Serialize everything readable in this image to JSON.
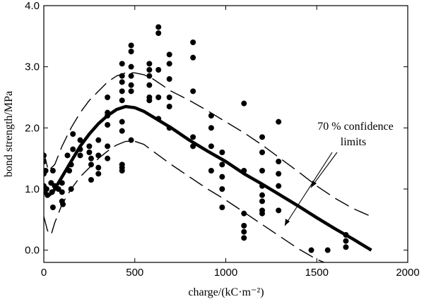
{
  "chart_data": {
    "type": "scatter",
    "title": "",
    "xlabel": "charge/(kC·m⁻²)",
    "ylabel": "bond strength/MPa",
    "xlim": [
      0,
      2000
    ],
    "ylim": [
      -0.2,
      4.0
    ],
    "x_ticks": [
      0,
      500,
      1000,
      1500,
      2000
    ],
    "y_ticks": [
      0.0,
      1.0,
      2.0,
      3.0,
      4.0
    ],
    "x_tick_labels": [
      "0",
      "500",
      "1000",
      "1500",
      "2000"
    ],
    "y_tick_labels": [
      "0.0",
      "1.0",
      "2.0",
      "3.0",
      "4.0"
    ],
    "annotation": {
      "line1": "70 % confidence",
      "line2": "limits"
    },
    "series": [
      {
        "name": "measured bond strength",
        "kind": "points",
        "points": [
          [
            0,
            1.55
          ],
          [
            0,
            1.45
          ],
          [
            0,
            1.25
          ],
          [
            0,
            1.05
          ],
          [
            0,
            0.95
          ],
          [
            10,
            1.3
          ],
          [
            15,
            1.0
          ],
          [
            20,
            0.9
          ],
          [
            40,
            1.1
          ],
          [
            45,
            0.95
          ],
          [
            50,
            1.3
          ],
          [
            50,
            0.7
          ],
          [
            60,
            1.05
          ],
          [
            80,
            1.0
          ],
          [
            100,
            1.1
          ],
          [
            100,
            0.95
          ],
          [
            100,
            0.8
          ],
          [
            105,
            0.75
          ],
          [
            130,
            1.55
          ],
          [
            140,
            1.3
          ],
          [
            150,
            1.4
          ],
          [
            150,
            1.0
          ],
          [
            160,
            1.9
          ],
          [
            160,
            1.65
          ],
          [
            200,
            1.55
          ],
          [
            200,
            1.65
          ],
          [
            200,
            1.8
          ],
          [
            250,
            1.6
          ],
          [
            250,
            1.7
          ],
          [
            260,
            1.5
          ],
          [
            260,
            1.4
          ],
          [
            260,
            1.15
          ],
          [
            300,
            1.8
          ],
          [
            300,
            1.55
          ],
          [
            300,
            1.35
          ],
          [
            300,
            1.25
          ],
          [
            350,
            2.5
          ],
          [
            350,
            2.25
          ],
          [
            350,
            2.2
          ],
          [
            350,
            2.05
          ],
          [
            350,
            1.7
          ],
          [
            350,
            1.5
          ],
          [
            430,
            3.05
          ],
          [
            430,
            2.85
          ],
          [
            430,
            2.75
          ],
          [
            430,
            2.6
          ],
          [
            430,
            2.45
          ],
          [
            430,
            2.1
          ],
          [
            430,
            1.95
          ],
          [
            430,
            1.4
          ],
          [
            430,
            1.35
          ],
          [
            430,
            1.3
          ],
          [
            480,
            3.35
          ],
          [
            480,
            3.25
          ],
          [
            480,
            3.0
          ],
          [
            480,
            2.85
          ],
          [
            480,
            2.7
          ],
          [
            480,
            2.6
          ],
          [
            480,
            1.8
          ],
          [
            580,
            3.05
          ],
          [
            580,
            2.95
          ],
          [
            580,
            2.85
          ],
          [
            580,
            2.7
          ],
          [
            580,
            2.5
          ],
          [
            580,
            2.45
          ],
          [
            630,
            3.65
          ],
          [
            630,
            3.55
          ],
          [
            630,
            2.95
          ],
          [
            630,
            2.5
          ],
          [
            630,
            2.15
          ],
          [
            690,
            3.2
          ],
          [
            690,
            3.05
          ],
          [
            690,
            2.8
          ],
          [
            690,
            2.5
          ],
          [
            690,
            2.35
          ],
          [
            690,
            2.0
          ],
          [
            820,
            3.4
          ],
          [
            820,
            3.15
          ],
          [
            820,
            2.6
          ],
          [
            820,
            1.85
          ],
          [
            820,
            1.7
          ],
          [
            920,
            2.2
          ],
          [
            920,
            2.0
          ],
          [
            920,
            1.7
          ],
          [
            920,
            1.3
          ],
          [
            980,
            1.6
          ],
          [
            980,
            1.4
          ],
          [
            980,
            1.2
          ],
          [
            980,
            1.0
          ],
          [
            980,
            0.7
          ],
          [
            1100,
            2.4
          ],
          [
            1100,
            1.3
          ],
          [
            1100,
            0.6
          ],
          [
            1100,
            0.4
          ],
          [
            1100,
            0.3
          ],
          [
            1100,
            0.2
          ],
          [
            1200,
            1.85
          ],
          [
            1200,
            1.6
          ],
          [
            1200,
            1.3
          ],
          [
            1200,
            1.05
          ],
          [
            1200,
            0.9
          ],
          [
            1200,
            0.8
          ],
          [
            1200,
            0.65
          ],
          [
            1200,
            0.6
          ],
          [
            1290,
            2.1
          ],
          [
            1290,
            1.45
          ],
          [
            1290,
            1.25
          ],
          [
            1290,
            1.05
          ],
          [
            1290,
            0.65
          ],
          [
            1470,
            0.0
          ],
          [
            1560,
            0.0
          ],
          [
            1660,
            0.25
          ],
          [
            1660,
            0.15
          ],
          [
            1660,
            0.05
          ]
        ]
      },
      {
        "name": "mean fit",
        "kind": "thick-line",
        "points": [
          [
            0,
            1.05
          ],
          [
            20,
            0.88
          ],
          [
            50,
            0.95
          ],
          [
            100,
            1.2
          ],
          [
            150,
            1.45
          ],
          [
            200,
            1.7
          ],
          [
            250,
            1.9
          ],
          [
            300,
            2.07
          ],
          [
            350,
            2.2
          ],
          [
            400,
            2.3
          ],
          [
            450,
            2.35
          ],
          [
            500,
            2.33
          ],
          [
            550,
            2.27
          ],
          [
            600,
            2.18
          ],
          [
            700,
            2.0
          ],
          [
            800,
            1.8
          ],
          [
            900,
            1.62
          ],
          [
            1000,
            1.45
          ],
          [
            1100,
            1.25
          ],
          [
            1200,
            1.08
          ],
          [
            1300,
            0.9
          ],
          [
            1400,
            0.72
          ],
          [
            1500,
            0.53
          ],
          [
            1600,
            0.35
          ],
          [
            1700,
            0.18
          ],
          [
            1800,
            0.0
          ]
        ]
      },
      {
        "name": "upper 70% confidence limit",
        "kind": "dashed-line",
        "points": [
          [
            0,
            1.6
          ],
          [
            25,
            1.3
          ],
          [
            60,
            1.4
          ],
          [
            100,
            1.7
          ],
          [
            150,
            2.0
          ],
          [
            200,
            2.25
          ],
          [
            250,
            2.45
          ],
          [
            300,
            2.6
          ],
          [
            350,
            2.75
          ],
          [
            400,
            2.85
          ],
          [
            450,
            2.9
          ],
          [
            500,
            2.9
          ],
          [
            550,
            2.87
          ],
          [
            600,
            2.8
          ],
          [
            700,
            2.6
          ],
          [
            800,
            2.45
          ],
          [
            900,
            2.28
          ],
          [
            1000,
            2.1
          ],
          [
            1100,
            1.92
          ],
          [
            1200,
            1.72
          ],
          [
            1300,
            1.5
          ],
          [
            1400,
            1.28
          ],
          [
            1500,
            1.05
          ],
          [
            1600,
            0.85
          ],
          [
            1700,
            0.68
          ],
          [
            1800,
            0.55
          ]
        ]
      },
      {
        "name": "lower 70% confidence limit",
        "kind": "dashed-line",
        "points": [
          [
            0,
            0.55
          ],
          [
            20,
            0.32
          ],
          [
            40,
            0.25
          ],
          [
            60,
            0.45
          ],
          [
            100,
            0.75
          ],
          [
            150,
            1.0
          ],
          [
            200,
            1.2
          ],
          [
            250,
            1.35
          ],
          [
            300,
            1.5
          ],
          [
            350,
            1.62
          ],
          [
            400,
            1.72
          ],
          [
            450,
            1.78
          ],
          [
            500,
            1.78
          ],
          [
            550,
            1.73
          ],
          [
            600,
            1.62
          ],
          [
            700,
            1.4
          ],
          [
            800,
            1.2
          ],
          [
            900,
            1.0
          ],
          [
            1000,
            0.82
          ],
          [
            1100,
            0.62
          ],
          [
            1200,
            0.42
          ],
          [
            1300,
            0.22
          ],
          [
            1400,
            0.02
          ],
          [
            1500,
            -0.15
          ],
          [
            1580,
            -0.25
          ]
        ]
      }
    ]
  }
}
